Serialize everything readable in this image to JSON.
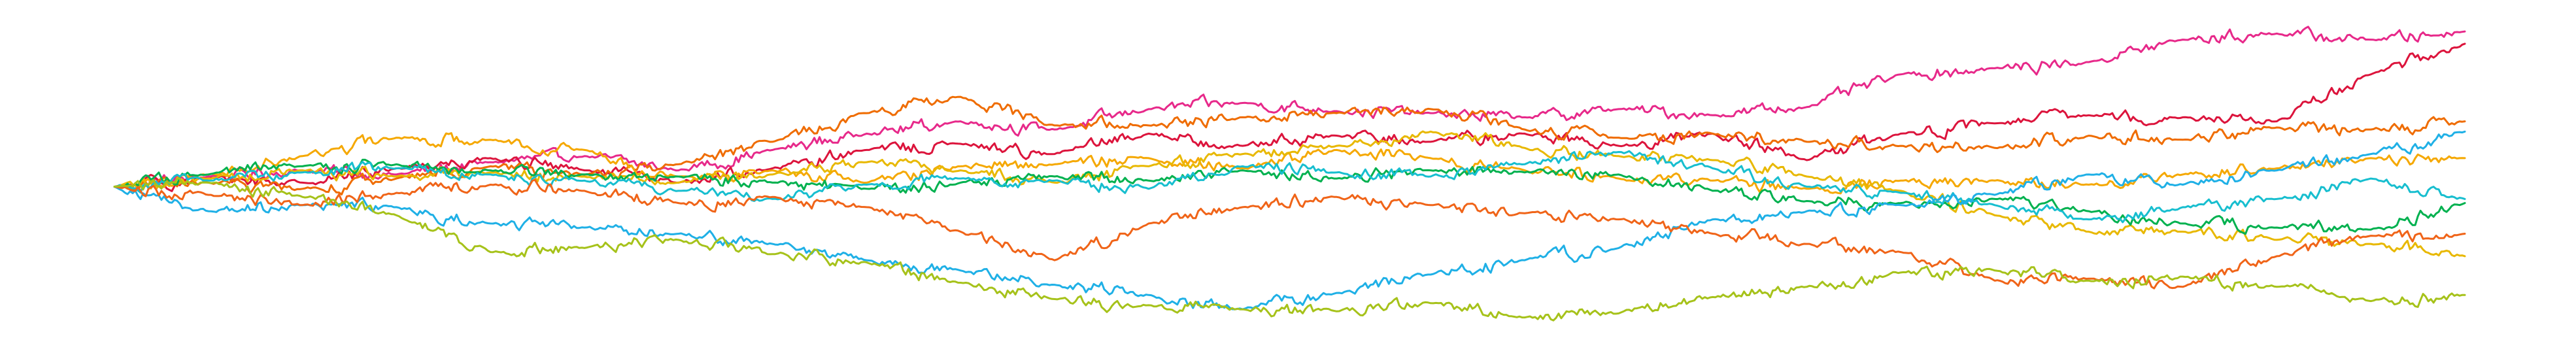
{
  "chart_data": {
    "type": "line",
    "title": "",
    "xlabel": "",
    "ylabel": "",
    "axes_visible": false,
    "grid": false,
    "legend": "none",
    "xlim": [
      0,
      100
    ],
    "ylim": [
      -7.5,
      8.5
    ],
    "series": [
      {
        "color": "#e7298a",
        "x": [
          0,
          4,
          8,
          12,
          16,
          20,
          24,
          28,
          32,
          36,
          40,
          44,
          48,
          52,
          56,
          60,
          64,
          68,
          72,
          76,
          80,
          84,
          88,
          92,
          96,
          100
        ],
        "values": [
          0,
          0.5,
          0.8,
          0.6,
          1.2,
          1.5,
          0.8,
          1.8,
          2.6,
          3.2,
          2.8,
          3.8,
          4.1,
          3.7,
          3.6,
          3.4,
          3.8,
          3.5,
          3.9,
          5.5,
          5.8,
          6.1,
          7.2,
          7.5,
          7.2,
          7.6
        ]
      },
      {
        "color": "#dc143c",
        "x": [
          0,
          4,
          8,
          12,
          16,
          20,
          24,
          28,
          32,
          36,
          40,
          44,
          48,
          52,
          56,
          60,
          64,
          68,
          72,
          76,
          80,
          84,
          88,
          92,
          96,
          100
        ],
        "values": [
          0,
          0.4,
          0.2,
          0.9,
          1.4,
          0.8,
          0.2,
          0.9,
          1.8,
          2.1,
          1.6,
          2.6,
          2.0,
          2.5,
          2.2,
          2.6,
          2.0,
          2.6,
          1.3,
          2.6,
          3.1,
          3.5,
          3.4,
          3.2,
          5.5,
          7.0
        ]
      },
      {
        "color": "#ef6c00",
        "x": [
          0,
          4,
          8,
          12,
          16,
          20,
          24,
          28,
          32,
          36,
          40,
          44,
          48,
          52,
          56,
          60,
          64,
          68,
          72,
          76,
          80,
          84,
          88,
          92,
          96,
          100
        ],
        "values": [
          0,
          0.2,
          -0.1,
          0.4,
          1.0,
          0.6,
          1.1,
          2.2,
          3.6,
          4.4,
          3.0,
          3.0,
          3.4,
          3.6,
          3.8,
          2.8,
          2.4,
          2.6,
          2.2,
          2.0,
          1.9,
          2.5,
          2.3,
          2.9,
          2.8,
          3.2
        ]
      },
      {
        "color": "#f5a800",
        "x": [
          0,
          4,
          8,
          12,
          16,
          20,
          24,
          28,
          32,
          36,
          40,
          44,
          48,
          52,
          56,
          60,
          64,
          68,
          72,
          76,
          80,
          84,
          88,
          92,
          96,
          100
        ],
        "values": [
          0,
          0.6,
          1.5,
          2.4,
          2.3,
          1.8,
          0.5,
          0.8,
          0.2,
          1.0,
          1.1,
          1.4,
          0.9,
          1.8,
          1.4,
          0.8,
          0.4,
          0.3,
          -0.1,
          0.3,
          0.3,
          0.1,
          0.6,
          0.9,
          1.4,
          1.4
        ]
      },
      {
        "color": "#e8b800",
        "x": [
          0,
          4,
          8,
          12,
          16,
          20,
          24,
          28,
          32,
          36,
          40,
          44,
          48,
          52,
          56,
          60,
          64,
          68,
          72,
          76,
          80,
          84,
          88,
          92,
          96,
          100
        ],
        "values": [
          0,
          0.4,
          0.8,
          0.5,
          0.7,
          0.5,
          0.2,
          0.6,
          1.2,
          0.8,
          0.2,
          1.0,
          1.6,
          2.0,
          2.7,
          1.9,
          1.5,
          1.3,
          0.5,
          -0.2,
          -1.4,
          -2.2,
          -2.2,
          -2.6,
          -2.8,
          -3.4
        ]
      },
      {
        "color": "#00b14f",
        "x": [
          0,
          4,
          8,
          12,
          16,
          20,
          24,
          28,
          32,
          36,
          40,
          44,
          48,
          52,
          56,
          60,
          64,
          68,
          72,
          76,
          80,
          84,
          88,
          92,
          96,
          100
        ],
        "values": [
          0,
          0.6,
          1.0,
          1.1,
          0.8,
          0.6,
          0.5,
          0.2,
          -0.1,
          0.2,
          0.5,
          0.3,
          0.8,
          0.4,
          0.8,
          0.7,
          0.6,
          -0.2,
          -0.7,
          -0.8,
          -0.6,
          -1.2,
          -1.8,
          -2.0,
          -2.1,
          -0.8
        ]
      },
      {
        "color": "#17becf",
        "x": [
          0,
          4,
          8,
          12,
          16,
          20,
          24,
          28,
          32,
          36,
          40,
          44,
          48,
          52,
          56,
          60,
          64,
          68,
          72,
          76,
          80,
          84,
          88,
          92,
          96,
          100
        ],
        "values": [
          0,
          0.3,
          0.7,
          0.9,
          0.6,
          0.3,
          -0.2,
          -0.6,
          0.1,
          0.4,
          0.3,
          -0.1,
          1.0,
          0.7,
          0.5,
          1.1,
          1.7,
          0.9,
          0.0,
          -0.3,
          -0.9,
          -1.6,
          -1.0,
          -0.6,
          0.4,
          -0.6
        ]
      },
      {
        "color": "#1fb0e6",
        "x": [
          0,
          4,
          8,
          12,
          16,
          20,
          24,
          28,
          32,
          36,
          40,
          44,
          48,
          52,
          56,
          60,
          64,
          68,
          72,
          76,
          80,
          84,
          88,
          92,
          96,
          100
        ],
        "values": [
          0,
          -1.2,
          -0.9,
          -1.0,
          -1.8,
          -2.0,
          -2.3,
          -2.8,
          -3.6,
          -4.1,
          -4.8,
          -5.3,
          -6.0,
          -5.2,
          -4.3,
          -3.6,
          -3.0,
          -1.6,
          -1.2,
          -0.9,
          -0.4,
          0.6,
          0.1,
          0.8,
          1.6,
          2.7
        ]
      },
      {
        "color": "#f06418",
        "x": [
          0,
          4,
          8,
          12,
          16,
          20,
          24,
          28,
          32,
          36,
          40,
          44,
          48,
          52,
          56,
          60,
          64,
          68,
          72,
          76,
          80,
          84,
          88,
          92,
          96,
          100
        ],
        "values": [
          0,
          -0.4,
          -0.9,
          -0.3,
          0.1,
          -0.2,
          -0.8,
          -0.5,
          -1.0,
          -2.2,
          -3.6,
          -1.8,
          -1.0,
          -0.5,
          -0.9,
          -1.3,
          -1.6,
          -2.3,
          -2.8,
          -3.2,
          -4.6,
          -4.5,
          -4.9,
          -3.4,
          -2.4,
          -2.3
        ]
      },
      {
        "color": "#a6c21a",
        "x": [
          0,
          4,
          8,
          12,
          16,
          20,
          24,
          28,
          32,
          36,
          40,
          44,
          48,
          52,
          56,
          60,
          64,
          68,
          72,
          76,
          80,
          84,
          88,
          92,
          96,
          100
        ],
        "values": [
          0,
          0.2,
          -0.5,
          -1.4,
          -3.2,
          -3.0,
          -2.6,
          -3.3,
          -3.7,
          -4.7,
          -5.5,
          -5.8,
          -6.0,
          -6.1,
          -5.7,
          -6.4,
          -6.2,
          -5.4,
          -4.9,
          -4.2,
          -4.1,
          -4.6,
          -4.4,
          -4.9,
          -5.6,
          -5.3
        ]
      }
    ]
  }
}
